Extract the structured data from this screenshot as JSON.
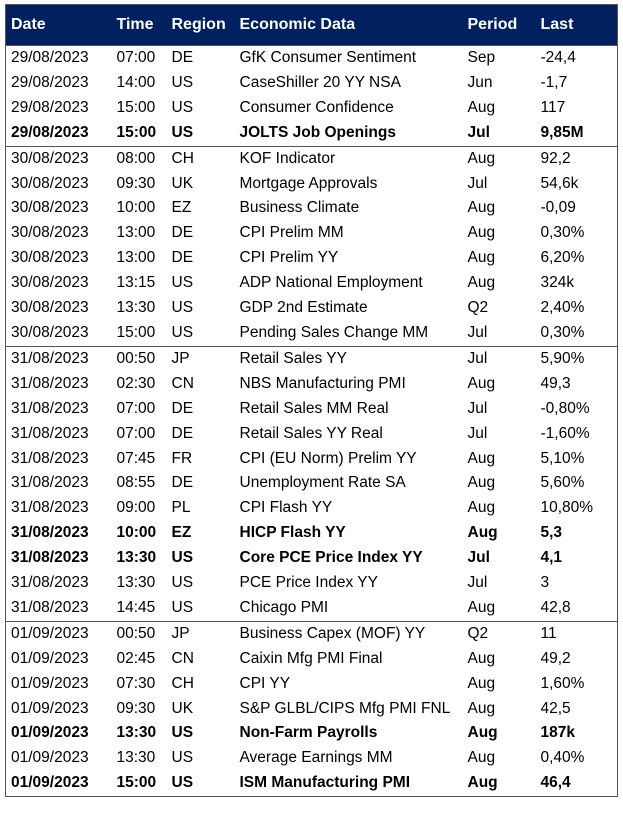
{
  "table": {
    "header": [
      "Date",
      "Time",
      "Region",
      "Economic Data",
      "Period",
      "Last"
    ],
    "groups": [
      {
        "rows": [
          {
            "cells": [
              "29/08/2023",
              "07:00",
              "DE",
              "GfK Consumer Sentiment",
              "Sep",
              "-24,4"
            ],
            "bold": false
          },
          {
            "cells": [
              "29/08/2023",
              "14:00",
              "US",
              "CaseShiller 20 YY NSA",
              "Jun",
              "-1,7"
            ],
            "bold": false
          },
          {
            "cells": [
              "29/08/2023",
              "15:00",
              "US",
              "Consumer Confidence",
              "Aug",
              "117"
            ],
            "bold": false
          },
          {
            "cells": [
              "29/08/2023",
              "15:00",
              "US",
              "JOLTS Job Openings",
              "Jul",
              "9,85M"
            ],
            "bold": true
          }
        ]
      },
      {
        "rows": [
          {
            "cells": [
              "30/08/2023",
              "08:00",
              "CH",
              "KOF Indicator",
              "Aug",
              "92,2"
            ],
            "bold": false
          },
          {
            "cells": [
              "30/08/2023",
              "09:30",
              "UK",
              "Mortgage Approvals",
              "Jul",
              "54,6k"
            ],
            "bold": false
          },
          {
            "cells": [
              "30/08/2023",
              "10:00",
              "EZ",
              "Business Climate",
              "Aug",
              "-0,09"
            ],
            "bold": false
          },
          {
            "cells": [
              "30/08/2023",
              "13:00",
              "DE",
              "CPI Prelim MM",
              "Aug",
              "0,30%"
            ],
            "bold": false
          },
          {
            "cells": [
              "30/08/2023",
              "13:00",
              "DE",
              "CPI Prelim YY",
              "Aug",
              "6,20%"
            ],
            "bold": false
          },
          {
            "cells": [
              "30/08/2023",
              "13:15",
              "US",
              "ADP National Employment",
              "Aug",
              "324k"
            ],
            "bold": false
          },
          {
            "cells": [
              "30/08/2023",
              "13:30",
              "US",
              "GDP 2nd Estimate",
              "Q2",
              "2,40%"
            ],
            "bold": false
          },
          {
            "cells": [
              "30/08/2023",
              "15:00",
              "US",
              "Pending Sales Change MM",
              "Jul",
              "0,30%"
            ],
            "bold": false
          }
        ]
      },
      {
        "rows": [
          {
            "cells": [
              "31/08/2023",
              "00:50",
              "JP",
              "Retail Sales YY",
              "Jul",
              "5,90%"
            ],
            "bold": false
          },
          {
            "cells": [
              "31/08/2023",
              "02:30",
              "CN",
              "NBS Manufacturing PMI",
              "Aug",
              "49,3"
            ],
            "bold": false
          },
          {
            "cells": [
              "31/08/2023",
              "07:00",
              "DE",
              "Retail Sales MM Real",
              "Jul",
              "-0,80%"
            ],
            "bold": false
          },
          {
            "cells": [
              "31/08/2023",
              "07:00",
              "DE",
              "Retail Sales YY Real",
              "Jul",
              "-1,60%"
            ],
            "bold": false
          },
          {
            "cells": [
              "31/08/2023",
              "07:45",
              "FR",
              "CPI (EU Norm) Prelim YY",
              "Aug",
              "5,10%"
            ],
            "bold": false
          },
          {
            "cells": [
              "31/08/2023",
              "08:55",
              "DE",
              "Unemployment Rate SA",
              "Aug",
              "5,60%"
            ],
            "bold": false
          },
          {
            "cells": [
              "31/08/2023",
              "09:00",
              "PL",
              "CPI Flash YY",
              "Aug",
              "10,80%"
            ],
            "bold": false
          },
          {
            "cells": [
              "31/08/2023",
              "10:00",
              "EZ",
              "HICP Flash YY",
              "Aug",
              "5,3"
            ],
            "bold": true
          },
          {
            "cells": [
              "31/08/2023",
              "13:30",
              "US",
              "Core PCE Price Index YY",
              "Jul",
              "4,1"
            ],
            "bold": true
          },
          {
            "cells": [
              "31/08/2023",
              "13:30",
              "US",
              "PCE Price Index YY",
              "Jul",
              "3"
            ],
            "bold": false
          },
          {
            "cells": [
              "31/08/2023",
              "14:45",
              "US",
              "Chicago PMI",
              "Aug",
              "42,8"
            ],
            "bold": false
          }
        ]
      },
      {
        "rows": [
          {
            "cells": [
              "01/09/2023",
              "00:50",
              "JP",
              "Business Capex (MOF) YY",
              "Q2",
              "11"
            ],
            "bold": false
          },
          {
            "cells": [
              "01/09/2023",
              "02:45",
              "CN",
              "Caixin Mfg PMI Final",
              "Aug",
              "49,2"
            ],
            "bold": false
          },
          {
            "cells": [
              "01/09/2023",
              "07:30",
              "CH",
              "CPI YY",
              "Aug",
              "1,60%"
            ],
            "bold": false
          },
          {
            "cells": [
              "01/09/2023",
              "09:30",
              "UK",
              "S&P GLBL/CIPS Mfg PMI FNL",
              "Aug",
              "42,5"
            ],
            "bold": false
          },
          {
            "cells": [
              "01/09/2023",
              "13:30",
              "US",
              "Non-Farm Payrolls",
              "Aug",
              "187k"
            ],
            "bold": true
          },
          {
            "cells": [
              "01/09/2023",
              "13:30",
              "US",
              "Average Earnings MM",
              "Aug",
              "0,40%"
            ],
            "bold": false
          },
          {
            "cells": [
              "01/09/2023",
              "15:00",
              "US",
              "ISM Manufacturing PMI",
              "Aug",
              "46,4"
            ],
            "bold": true
          }
        ]
      }
    ]
  }
}
